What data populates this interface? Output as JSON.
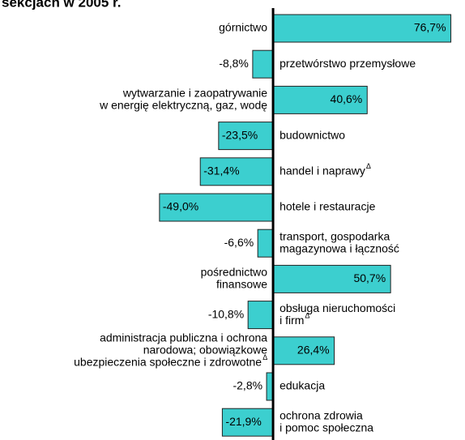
{
  "chart_data": {
    "type": "bar",
    "orientation": "horizontal",
    "title": "sekcjach w 2005 r.",
    "categories": [
      [
        "górnictwo"
      ],
      [
        "przetwórstwo przemysłowe"
      ],
      [
        "wytwarzanie i zaopatrywanie",
        "w energię elektryczną, gaz, wodę"
      ],
      [
        "budownictwo"
      ],
      [
        "handel i naprawy"
      ],
      [
        "hotele i restauracje"
      ],
      [
        "transport, gospodarka",
        "magazynowa i łączność"
      ],
      [
        "pośrednictwo",
        "finansowe"
      ],
      [
        "obsługa nieruchomości",
        "i firm"
      ],
      [
        "administracja publiczna i ochrona",
        "narodowa; obowiązkowe",
        "ubezpieczenia społeczne i zdrowotne"
      ],
      [
        "edukacja"
      ],
      [
        "ochrona zdrowia",
        "i pomoc społeczna"
      ]
    ],
    "notes": [
      null,
      null,
      null,
      null,
      "Δ",
      null,
      null,
      null,
      "Δ",
      "Δ",
      null,
      null
    ],
    "values": [
      76.7,
      -8.8,
      40.6,
      -23.5,
      -31.4,
      -49.0,
      -6.6,
      50.7,
      -10.8,
      26.4,
      -2.8,
      -21.9
    ],
    "value_labels": [
      "76,7%",
      "-8,8%",
      "40,6%",
      "-23,5%",
      "-31,4%",
      "-49,0%",
      "-6,6%",
      "50,7%",
      "-10,8%",
      "26,4%",
      "-2,8%",
      "-21,9%"
    ],
    "color": "#3ccfcf",
    "xlim": [
      -50,
      80
    ]
  }
}
